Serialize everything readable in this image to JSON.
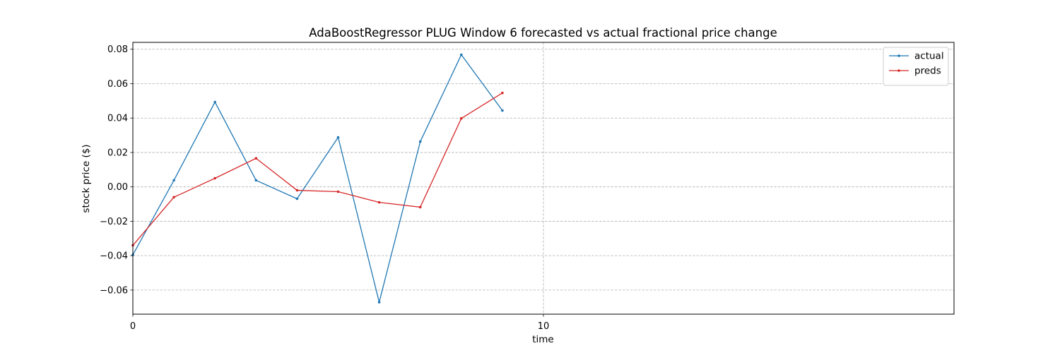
{
  "chart_data": {
    "type": "line",
    "title": "AdaBoostRegressor PLUG Window 6 forecasted vs actual fractional price change",
    "xlabel": "time",
    "ylabel": "stock price ($)",
    "xlim": [
      0,
      20
    ],
    "ylim": [
      -0.074,
      0.084
    ],
    "x_ticks": [
      0,
      10
    ],
    "x_tick_labels": [
      "0",
      "10"
    ],
    "y_ticks": [
      -0.06,
      -0.04,
      -0.02,
      0.0,
      0.02,
      0.04,
      0.06,
      0.08
    ],
    "y_tick_labels": [
      "−0.06",
      "−0.04",
      "−0.02",
      "0.00",
      "0.02",
      "0.04",
      "0.06",
      "0.08"
    ],
    "grid": true,
    "legend_position": "top-right",
    "x": [
      0,
      1,
      2,
      3,
      4,
      5,
      6,
      7,
      8,
      9
    ],
    "series": [
      {
        "name": "actual",
        "color": "#1f77b4",
        "values": [
          -0.0395,
          0.0038,
          0.0493,
          0.0038,
          -0.0069,
          0.0288,
          -0.067,
          0.0263,
          0.0768,
          0.0444
        ]
      },
      {
        "name": "preds",
        "color": "#d62728",
        "values": [
          -0.034,
          -0.006,
          0.005,
          0.0166,
          -0.002,
          -0.0028,
          -0.009,
          -0.0118,
          0.0398,
          0.0546
        ]
      }
    ]
  }
}
